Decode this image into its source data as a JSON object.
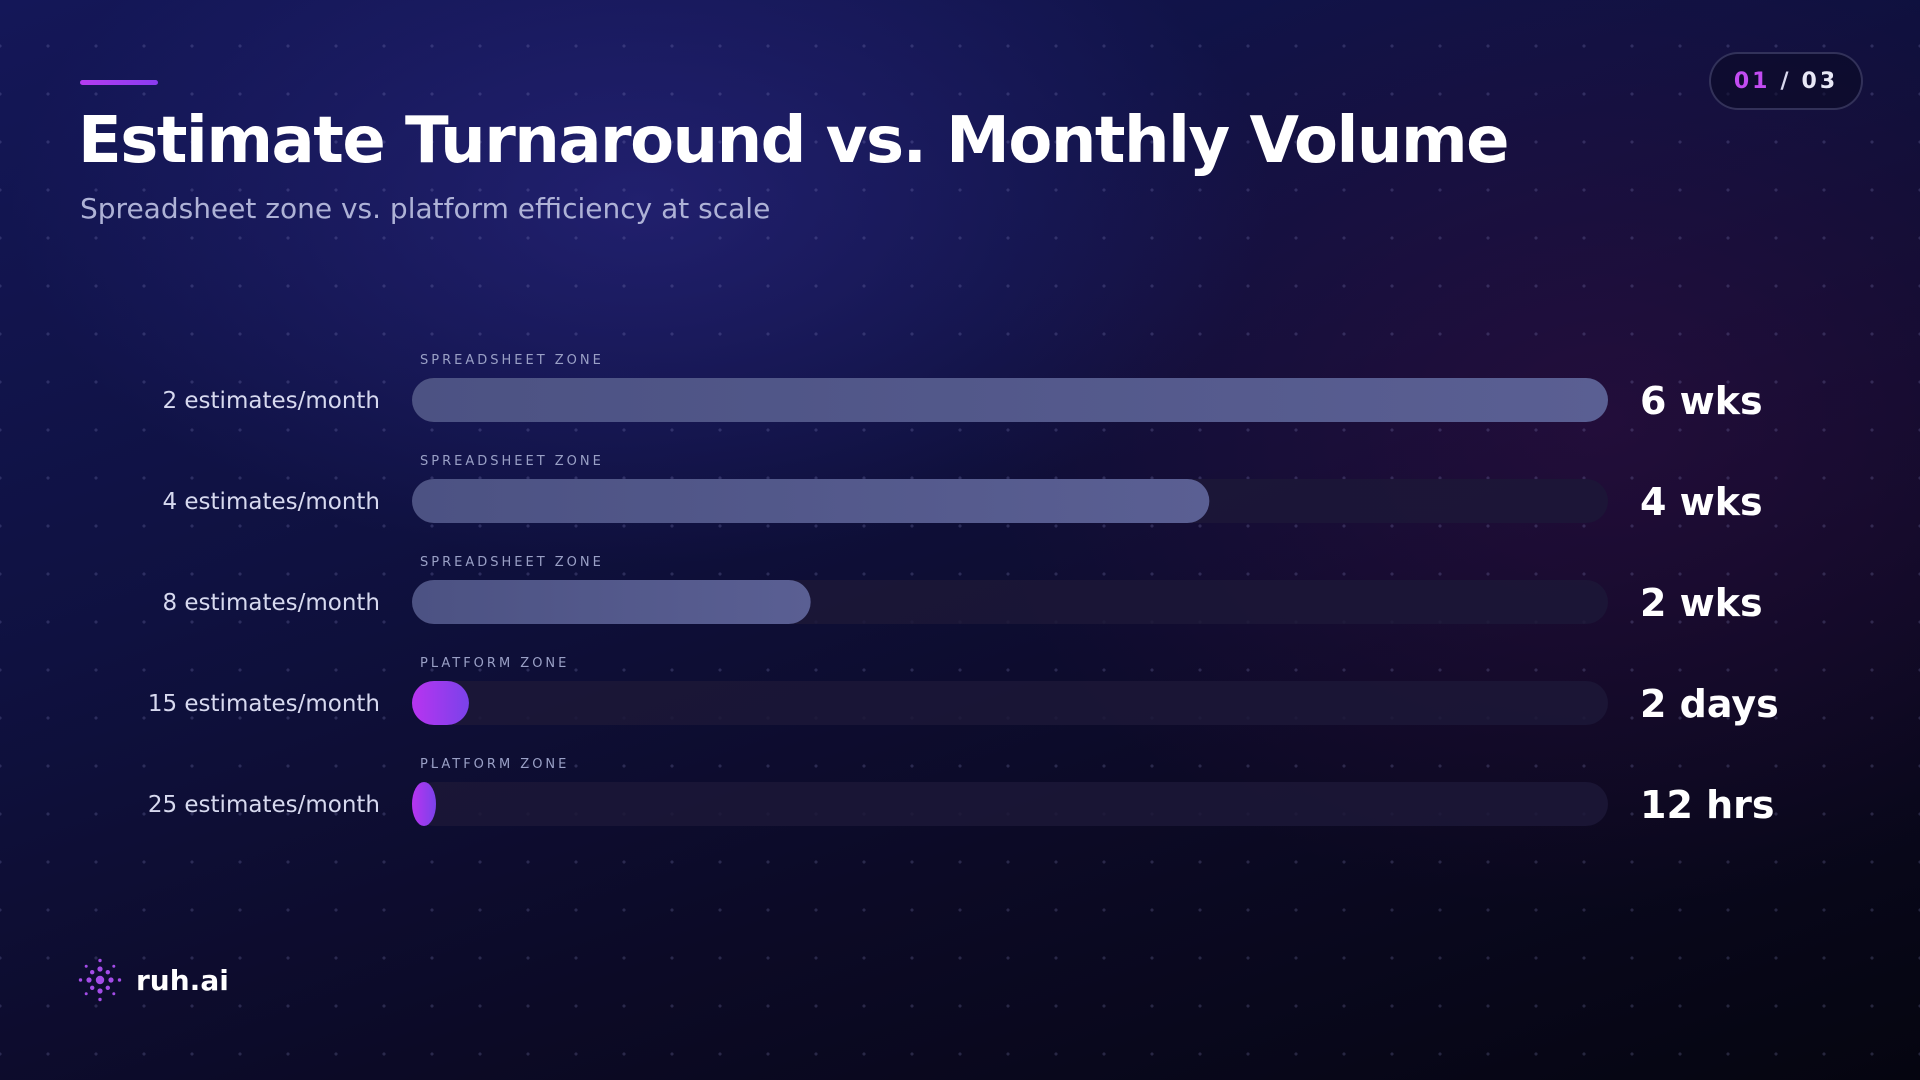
{
  "slide": {
    "title": "Estimate Turnaround vs. Monthly Volume",
    "subtitle": "Spreadsheet zone vs. platform efficiency at scale",
    "page_current": "01",
    "page_separator": "/",
    "page_total": "03"
  },
  "brand": {
    "name": "ruh.ai",
    "accent": "#b43cf0"
  },
  "chart_data": {
    "type": "bar",
    "orientation": "horizontal",
    "categories": [
      "2 estimates/month",
      "4 estimates/month",
      "8 estimates/month",
      "15 estimates/month",
      "25 estimates/month"
    ],
    "zones": [
      "SPREADSHEET ZONE",
      "SPREADSHEET ZONE",
      "SPREADSHEET ZONE",
      "PLATFORM ZONE",
      "PLATFORM ZONE"
    ],
    "value_labels": [
      "6 wks",
      "4 wks",
      "2 wks",
      "2 days",
      "12 hrs"
    ],
    "values_hours": [
      1008,
      672,
      336,
      48,
      12
    ],
    "xlim": [
      0,
      1008
    ],
    "grid": false,
    "colors": {
      "spreadsheet_start": "#4c5283",
      "spreadsheet_end": "#5a5f93",
      "platform_start": "#b834f0",
      "platform_end": "#7a42ea",
      "track": "#1c1837"
    }
  }
}
